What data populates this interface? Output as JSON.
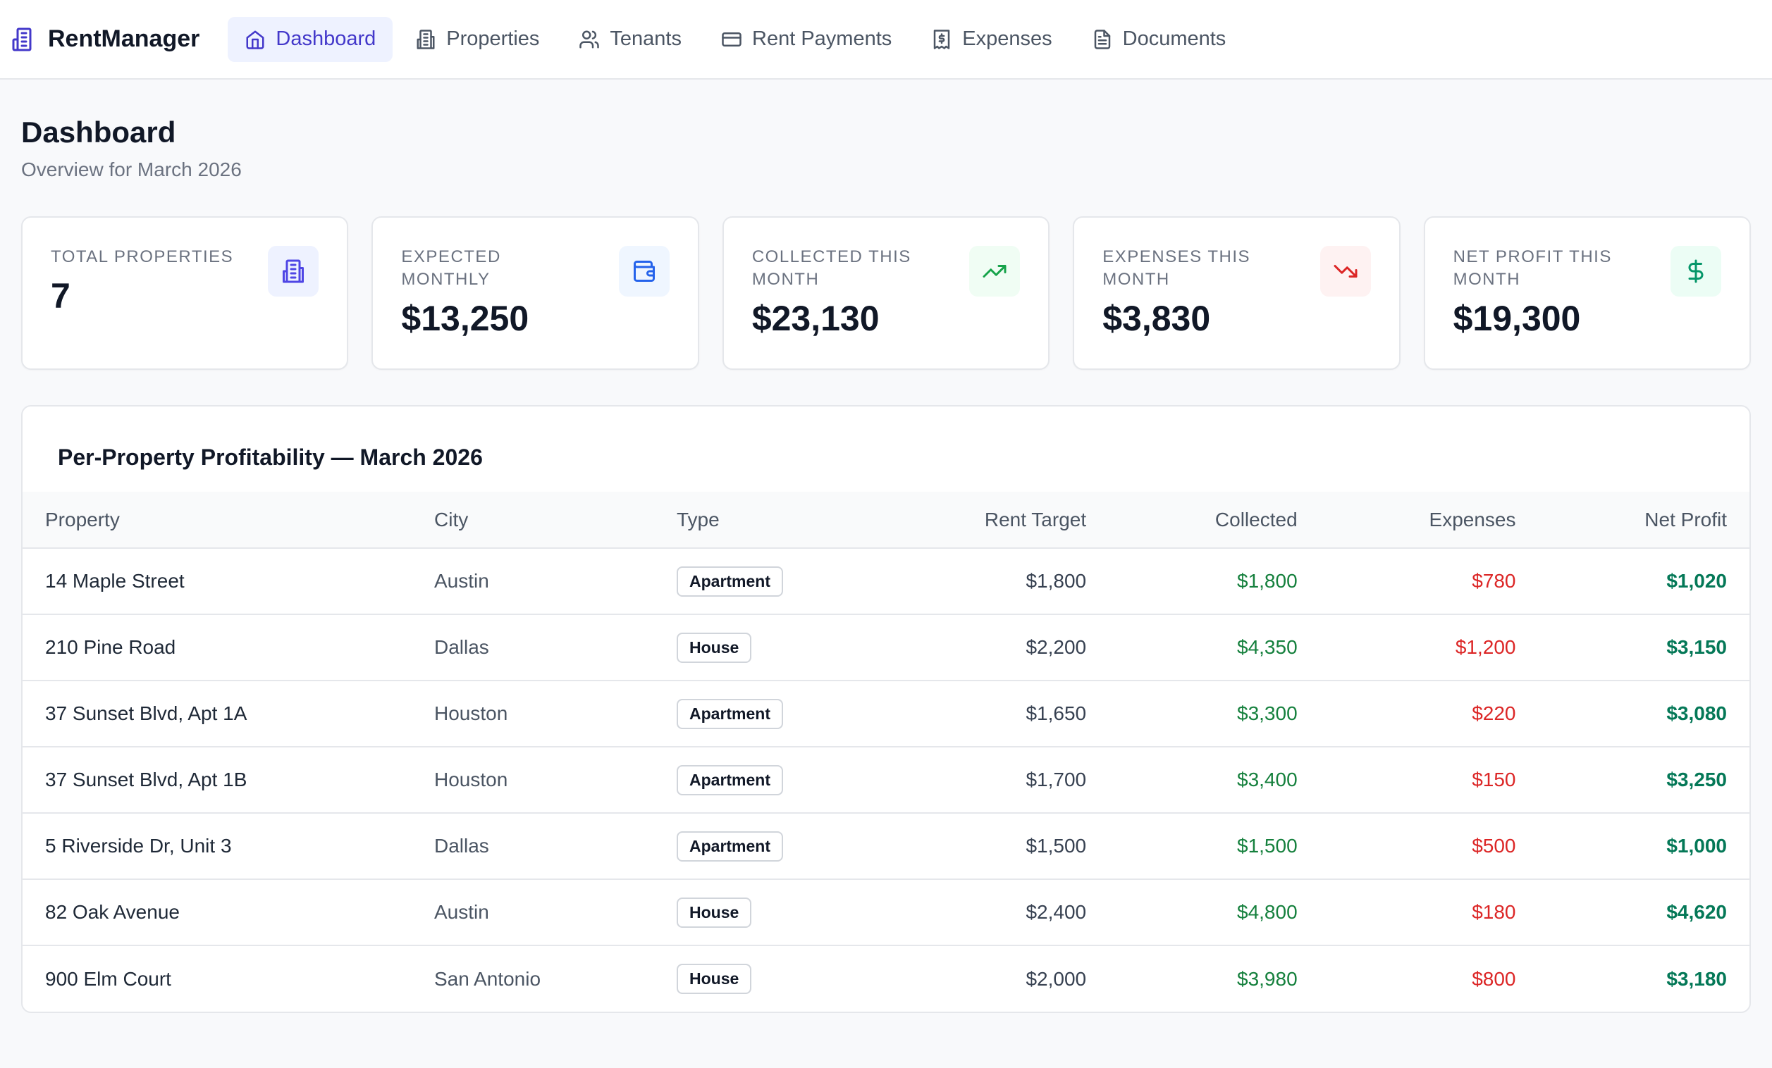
{
  "app": {
    "name": "RentManager",
    "brand_color": "#4338ca"
  },
  "nav": {
    "items": [
      {
        "label": "Dashboard",
        "icon": "home-icon",
        "active": true
      },
      {
        "label": "Properties",
        "icon": "building-icon",
        "active": false
      },
      {
        "label": "Tenants",
        "icon": "users-icon",
        "active": false
      },
      {
        "label": "Rent Payments",
        "icon": "credit-card-icon",
        "active": false
      },
      {
        "label": "Expenses",
        "icon": "receipt-icon",
        "active": false
      },
      {
        "label": "Documents",
        "icon": "document-icon",
        "active": false
      }
    ]
  },
  "page": {
    "title": "Dashboard",
    "subtitle": "Overview for March 2026"
  },
  "cards": [
    {
      "label": "TOTAL PROPERTIES",
      "value": "7",
      "icon": "building-icon",
      "icon_color": "#4f46e5",
      "icon_bg": "#eef2ff"
    },
    {
      "label": "EXPECTED MONTHLY",
      "value": "$13,250",
      "icon": "wallet-icon",
      "icon_color": "#2563eb",
      "icon_bg": "#eff6ff"
    },
    {
      "label": "COLLECTED THIS MONTH",
      "value": "$23,130",
      "icon": "trending-up-icon",
      "icon_color": "#16a34a",
      "icon_bg": "#f0fdf4"
    },
    {
      "label": "EXPENSES THIS MONTH",
      "value": "$3,830",
      "icon": "trending-down-icon",
      "icon_color": "#dc2626",
      "icon_bg": "#fef2f2"
    },
    {
      "label": "NET PROFIT THIS MONTH",
      "value": "$19,300",
      "icon": "dollar-icon",
      "icon_color": "#059669",
      "icon_bg": "#ecfdf5"
    }
  ],
  "table": {
    "title": "Per-Property Profitability — March 2026",
    "columns": {
      "property": "Property",
      "city": "City",
      "type": "Type",
      "rent_target": "Rent Target",
      "collected": "Collected",
      "expenses": "Expenses",
      "net_profit": "Net Profit"
    },
    "rows": [
      {
        "property": "14 Maple Street",
        "city": "Austin",
        "type": "Apartment",
        "rent_target": "$1,800",
        "collected": "$1,800",
        "expenses": "$780",
        "net_profit": "$1,020"
      },
      {
        "property": "210 Pine Road",
        "city": "Dallas",
        "type": "House",
        "rent_target": "$2,200",
        "collected": "$4,350",
        "expenses": "$1,200",
        "net_profit": "$3,150"
      },
      {
        "property": "37 Sunset Blvd, Apt 1A",
        "city": "Houston",
        "type": "Apartment",
        "rent_target": "$1,650",
        "collected": "$3,300",
        "expenses": "$220",
        "net_profit": "$3,080"
      },
      {
        "property": "37 Sunset Blvd, Apt 1B",
        "city": "Houston",
        "type": "Apartment",
        "rent_target": "$1,700",
        "collected": "$3,400",
        "expenses": "$150",
        "net_profit": "$3,250"
      },
      {
        "property": "5 Riverside Dr, Unit 3",
        "city": "Dallas",
        "type": "Apartment",
        "rent_target": "$1,500",
        "collected": "$1,500",
        "expenses": "$500",
        "net_profit": "$1,000"
      },
      {
        "property": "82 Oak Avenue",
        "city": "Austin",
        "type": "House",
        "rent_target": "$2,400",
        "collected": "$4,800",
        "expenses": "$180",
        "net_profit": "$4,620"
      },
      {
        "property": "900 Elm Court",
        "city": "San Antonio",
        "type": "House",
        "rent_target": "$2,000",
        "collected": "$3,980",
        "expenses": "$800",
        "net_profit": "$3,180"
      }
    ]
  }
}
